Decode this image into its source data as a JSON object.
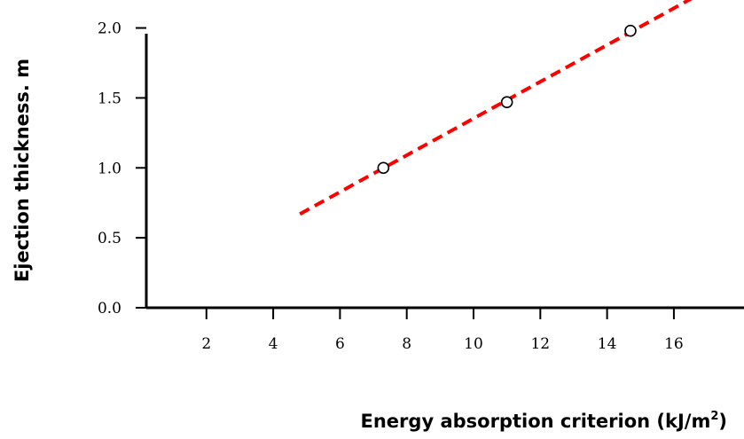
{
  "chart_data": {
    "type": "scatter",
    "title": "",
    "xlabel": "Energy absorption criterion  (kJ/m",
    "xlabel_sup": "2",
    "xlabel_suffix": ")",
    "ylabel": "Ejection thickness. m",
    "xlim": [
      0.2,
      18.1
    ],
    "ylim": [
      0.0,
      2.2
    ],
    "x_ticks": [
      2,
      4,
      6,
      8,
      10,
      12,
      14,
      16
    ],
    "x_tick_labels": [
      "2",
      "4",
      "6",
      "8",
      "10",
      "12",
      "14",
      "16"
    ],
    "y_ticks": [
      0.0,
      0.5,
      1.0,
      1.5,
      2.0
    ],
    "y_tick_labels": [
      "0.0",
      "0.5",
      "1.0",
      "1.5",
      "2.0"
    ],
    "grid": false,
    "series": [
      {
        "kind": "points",
        "marker": "open-circle",
        "color": "#000000",
        "x": [
          7.3,
          11.0,
          14.7
        ],
        "y": [
          1.0,
          1.47,
          1.98
        ]
      },
      {
        "kind": "fit-line",
        "style": "dashed",
        "color": "#ff0000",
        "x": [
          4.8,
          16.6
        ],
        "y": [
          0.67,
          2.22
        ]
      }
    ]
  }
}
